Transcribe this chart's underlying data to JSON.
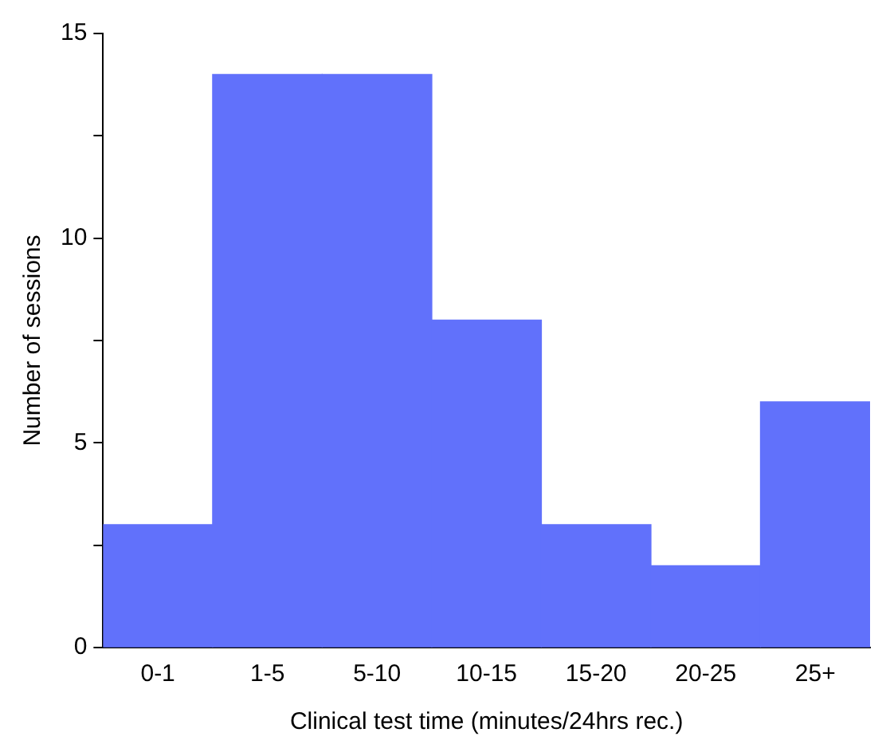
{
  "chart_data": {
    "type": "bar",
    "xlabel": "Clinical test time (minutes/24hrs rec.)",
    "ylabel": "Number of sessions",
    "categories": [
      "0-1",
      "1-5",
      "5-10",
      "10-15",
      "15-20",
      "20-25",
      "25+"
    ],
    "values": [
      3,
      14,
      14,
      8,
      3,
      2,
      6
    ],
    "color": "#6171fb",
    "ylim": [
      0,
      15
    ],
    "yticks": [
      0,
      {
        "value": 2.5,
        "label": null
      },
      5,
      {
        "value": 7.5,
        "label": null
      },
      10,
      {
        "value": 12.5,
        "label": null
      },
      15
    ],
    "grid": false,
    "legend": false
  }
}
